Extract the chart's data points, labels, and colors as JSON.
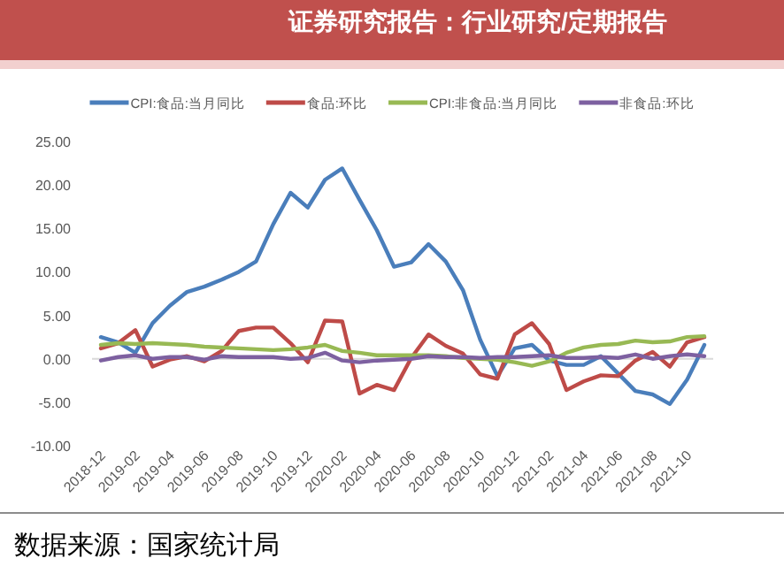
{
  "chart_data": {
    "type": "line",
    "categories": [
      "2018-12",
      null,
      "2019-02",
      null,
      "2019-04",
      null,
      "2019-06",
      null,
      "2019-08",
      null,
      "2019-10",
      null,
      "2019-12",
      null,
      "2020-02",
      null,
      "2020-04",
      null,
      "2020-06",
      null,
      "2020-08",
      null,
      "2020-10",
      null,
      "2020-12",
      null,
      "2021-02",
      null,
      "2021-04",
      null,
      "2021-06",
      null,
      "2021-08",
      null,
      "2021-10",
      null
    ],
    "series": [
      {
        "name": "CPI:食品:当月同比",
        "color": "#4a7ebb",
        "values": [
          2.5,
          1.9,
          0.7,
          4.1,
          6.1,
          7.7,
          8.3,
          9.1,
          10.0,
          11.2,
          15.5,
          19.1,
          17.4,
          20.6,
          21.9,
          18.3,
          14.8,
          10.6,
          11.1,
          13.2,
          11.2,
          7.9,
          2.2,
          -2.0,
          1.2,
          1.6,
          -0.2,
          -0.7,
          -0.7,
          0.3,
          -1.7,
          -3.7,
          -4.1,
          -5.2,
          -2.4,
          1.6
        ]
      },
      {
        "name": "食品:环比",
        "color": "#be4b48",
        "values": [
          1.2,
          1.8,
          3.3,
          -0.9,
          -0.1,
          0.3,
          -0.3,
          0.9,
          3.2,
          3.6,
          3.6,
          1.8,
          -0.4,
          4.4,
          4.3,
          -4.0,
          -3.0,
          -3.6,
          0.1,
          2.8,
          1.5,
          0.6,
          -1.8,
          -2.3,
          2.8,
          4.1,
          1.7,
          -3.6,
          -2.6,
          -1.9,
          -2.0,
          -0.2,
          0.8,
          -0.9,
          1.9,
          2.5
        ]
      },
      {
        "name": "CPI:非食品:当月同比",
        "color": "#98b954",
        "values": [
          1.6,
          1.8,
          1.7,
          1.8,
          1.7,
          1.6,
          1.4,
          1.3,
          1.2,
          1.1,
          1.0,
          1.1,
          1.3,
          1.6,
          0.9,
          0.7,
          0.4,
          0.4,
          0.4,
          0.4,
          0.3,
          0.1,
          0.0,
          -0.1,
          -0.4,
          -0.8,
          -0.3,
          0.7,
          1.3,
          1.6,
          1.7,
          2.1,
          1.9,
          2.0,
          2.5,
          2.6
        ]
      },
      {
        "name": "非食品:环比",
        "color": "#7d60a0",
        "values": [
          -0.2,
          0.2,
          0.4,
          0.0,
          0.2,
          0.2,
          -0.1,
          0.3,
          0.2,
          0.2,
          0.2,
          0.0,
          0.1,
          0.7,
          -0.2,
          -0.4,
          -0.2,
          -0.1,
          0.0,
          0.3,
          0.2,
          0.2,
          0.1,
          0.2,
          0.2,
          0.3,
          0.4,
          0.1,
          0.1,
          0.2,
          0.1,
          0.5,
          0.0,
          0.3,
          0.5,
          0.3
        ]
      }
    ],
    "ylim": [
      -10,
      25
    ],
    "yticks": [
      {
        "value": -10,
        "label": "-10.00"
      },
      {
        "value": -5,
        "label": "-5.00"
      },
      {
        "value": 0,
        "label": "0.00"
      },
      {
        "value": 5,
        "label": "5.00"
      },
      {
        "value": 10,
        "label": "10.00"
      },
      {
        "value": 15,
        "label": "15.00"
      },
      {
        "value": 20,
        "label": "20.00"
      },
      {
        "value": 25,
        "label": "25.00"
      }
    ],
    "legend": "top",
    "marker": "none",
    "line_style": "solid",
    "annotations": [
      "证券研究报告：行业研究/定期报告",
      "数据来源：国家统计局"
    ]
  }
}
